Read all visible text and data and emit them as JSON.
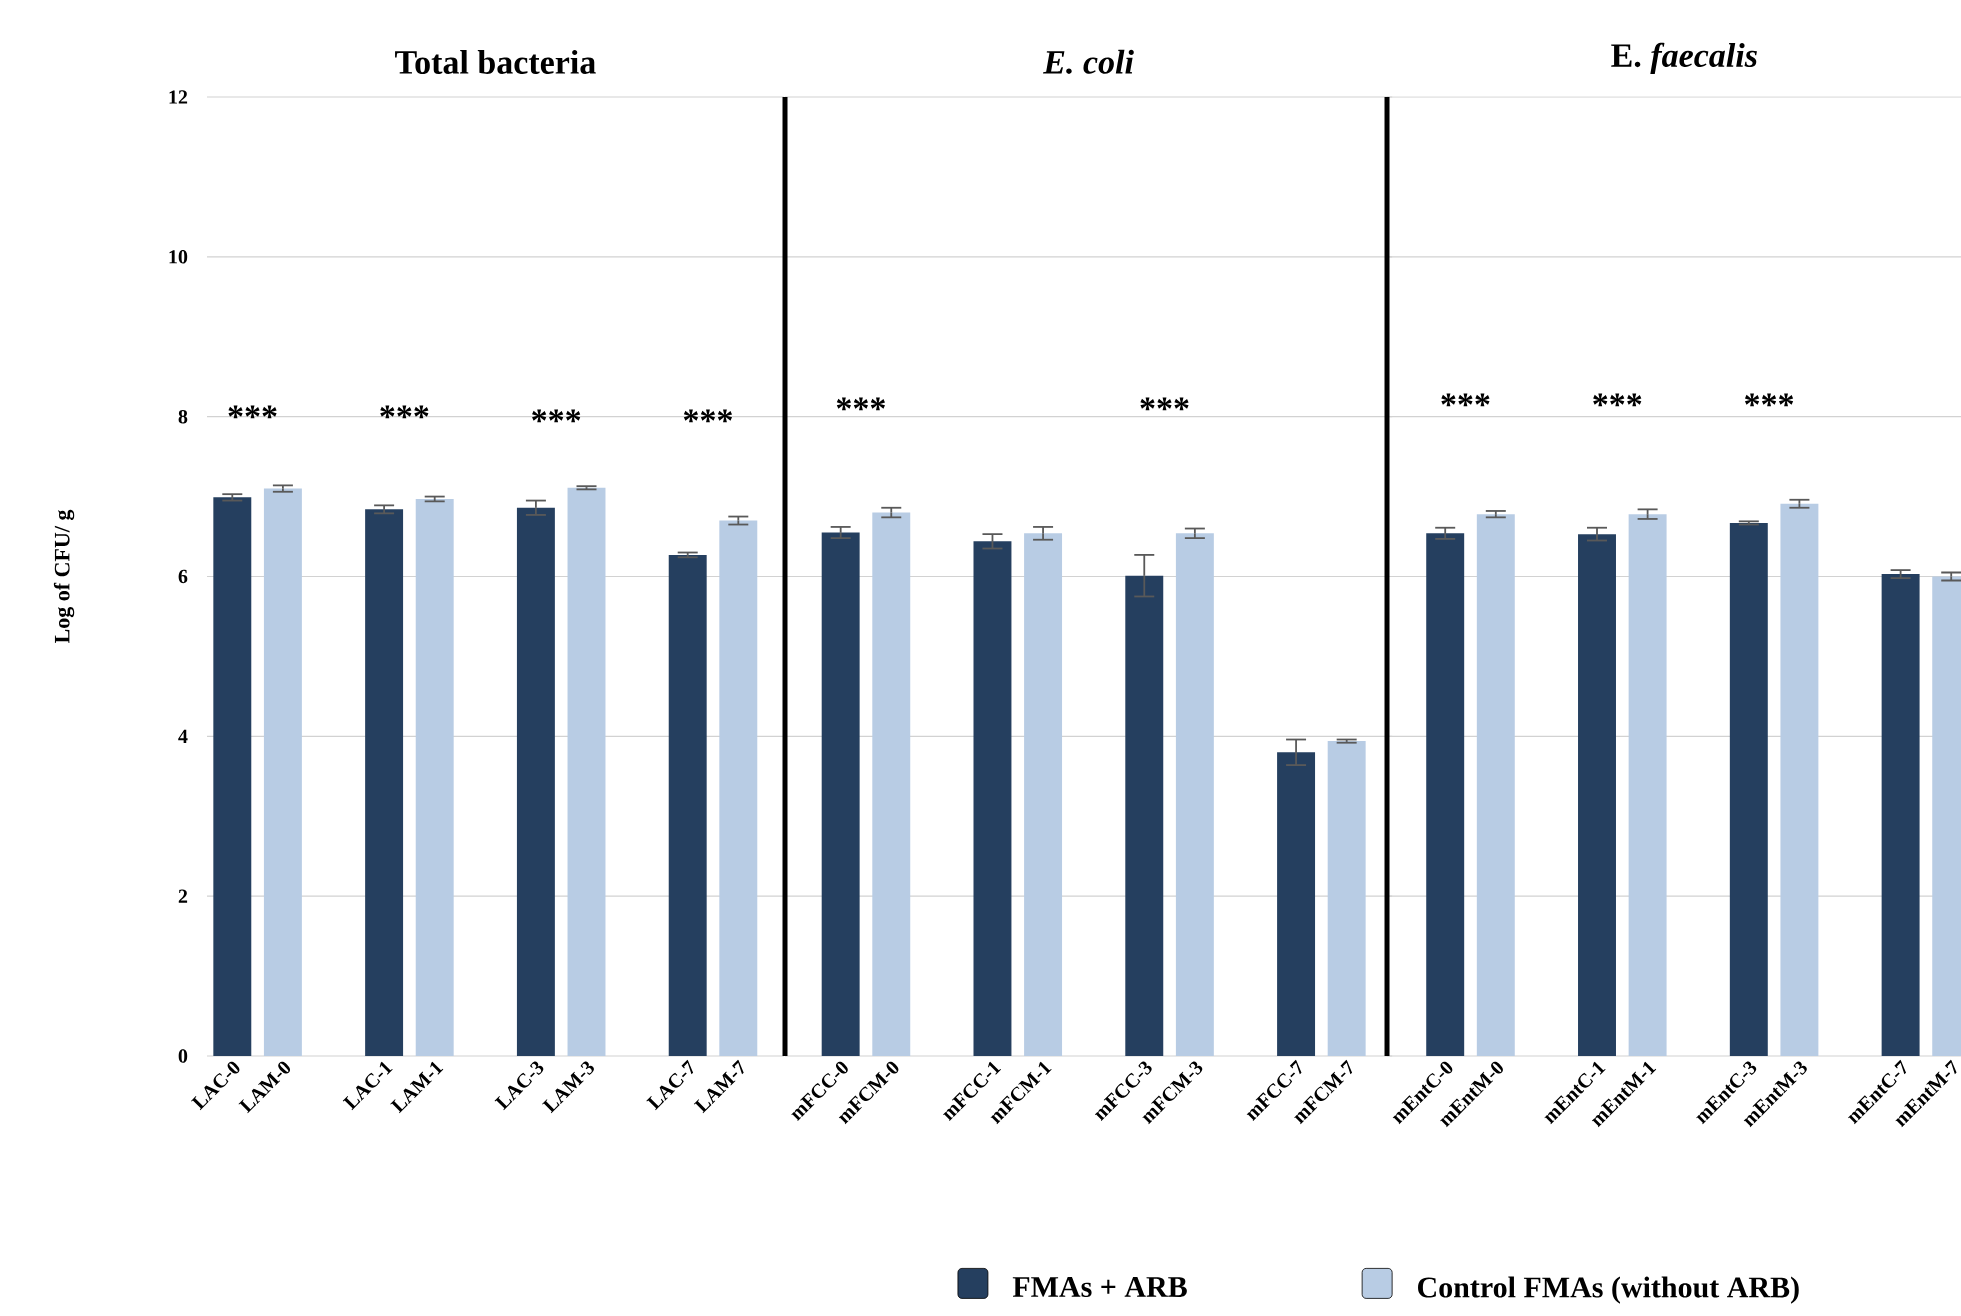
{
  "chart_data": [
    {
      "type": "bar",
      "title": "Total bacteria",
      "ylabel": "Log of CFU/ g",
      "categories": [
        "LAC-0",
        "LAM-0",
        "LAC-1",
        "LAM-1",
        "LAC-3",
        "LAM-3",
        "LAC-7",
        "LAM-7"
      ],
      "series": [
        {
          "name": "FMAs + ARB",
          "color": "#253f5f",
          "values": [
            6.99,
            null,
            6.84,
            null,
            6.86,
            null,
            6.27,
            null
          ],
          "errors": [
            0.04,
            null,
            0.05,
            null,
            0.09,
            null,
            0.03,
            null
          ]
        },
        {
          "name": "Control FMAs (without ARB)",
          "color": "#b8cce4",
          "values": [
            null,
            7.1,
            null,
            6.97,
            null,
            7.11,
            null,
            6.7
          ],
          "errors": [
            null,
            0.04,
            null,
            0.03,
            null,
            0.02,
            null,
            0.05
          ]
        }
      ],
      "ylim": [
        0,
        12
      ],
      "yticks": [
        0,
        2,
        4,
        6,
        8,
        10,
        12
      ],
      "grid": "y",
      "legend": "bottom",
      "annotations": [
        "***",
        "***",
        "***",
        "***"
      ]
    },
    {
      "type": "bar",
      "title": "*E. coli*",
      "categories": [
        "mFCC-0",
        "mFCM-0",
        "mFCC-1",
        "mFCM-1",
        "mFCC-3",
        "mFCM-3",
        "mFCC-7",
        "mFCM-7"
      ],
      "series": [
        {
          "color": "#253f5f",
          "values": [
            6.55,
            null,
            6.44,
            null,
            6.01,
            null,
            3.8,
            null
          ],
          "errors": [
            0.07,
            null,
            0.09,
            null,
            0.26,
            null,
            0.16,
            null
          ]
        },
        {
          "color": "#b8cce4",
          "values": [
            null,
            6.8,
            null,
            6.54,
            null,
            6.54,
            null,
            3.94
          ],
          "errors": [
            null,
            0.06,
            null,
            0.08,
            null,
            0.06,
            null,
            0.02
          ]
        }
      ],
      "ylim": [
        0,
        12
      ],
      "yticks": [
        0,
        2,
        4,
        6,
        8,
        10,
        12
      ],
      "grid": "y",
      "tick_labels": "x",
      "annotations": [
        "***",
        "***"
      ]
    },
    {
      "type": "bar",
      "title": "E. *faecalis*",
      "categories": [
        "mEntC-0",
        "mEntM-0",
        "mEntC-1",
        "mEntM-1",
        "mEntC-3",
        "mEntM-3",
        "mEntC-7",
        "mEntM-7"
      ],
      "series": [
        {
          "color": "#253f5f",
          "values": [
            6.54,
            null,
            6.53,
            null,
            6.67,
            null,
            6.03,
            null
          ],
          "errors": [
            0.07,
            null,
            0.08,
            null,
            0.02,
            null,
            0.05,
            null
          ]
        },
        {
          "color": "#b8cce4",
          "values": [
            null,
            6.78,
            null,
            6.78,
            null,
            6.91,
            null,
            6.0
          ],
          "errors": [
            null,
            0.04,
            null,
            0.06,
            null,
            0.05,
            null,
            0.05
          ]
        }
      ],
      "ylim": [
        0,
        12
      ],
      "yticks": [
        0,
        2,
        4,
        6,
        8,
        10,
        12
      ],
      "grid": "y",
      "tick_labels": "x",
      "annotations": [
        "***",
        "***",
        "***"
      ]
    }
  ]
}
